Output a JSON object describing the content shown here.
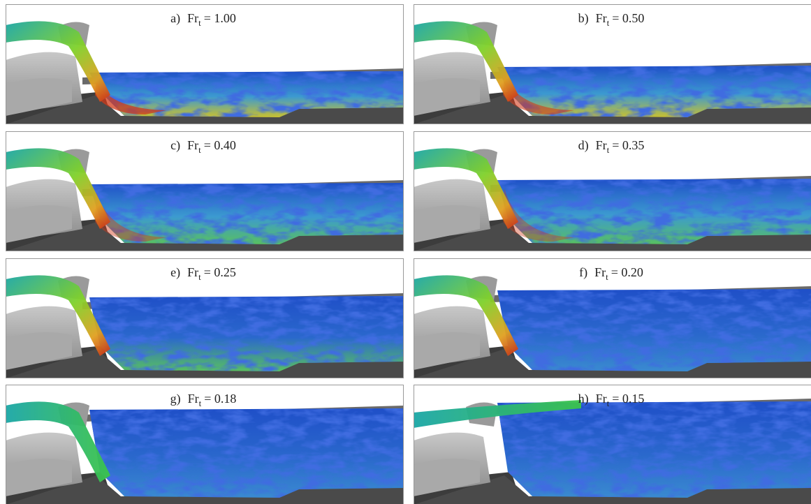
{
  "figure": {
    "panels": [
      {
        "letter": "a)",
        "symbol": "Fr",
        "subscript": "t",
        "value_text": "= 1.00"
      },
      {
        "letter": "b)",
        "symbol": "Fr",
        "subscript": "t",
        "value_text": "= 0.50"
      },
      {
        "letter": "c)",
        "symbol": "Fr",
        "subscript": "t",
        "value_text": "= 0.40"
      },
      {
        "letter": "d)",
        "symbol": "Fr",
        "subscript": "t",
        "value_text": "= 0.35"
      },
      {
        "letter": "e)",
        "symbol": "Fr",
        "subscript": "t",
        "value_text": "= 0.25"
      },
      {
        "letter": "f)",
        "symbol": "Fr",
        "subscript": "t",
        "value_text": "= 0.20"
      },
      {
        "letter": "g)",
        "symbol": "Fr",
        "subscript": "t",
        "value_text": "= 0.18"
      },
      {
        "letter": "h)",
        "symbol": "Fr",
        "subscript": "t",
        "value_text": "= 0.15"
      }
    ]
  }
}
